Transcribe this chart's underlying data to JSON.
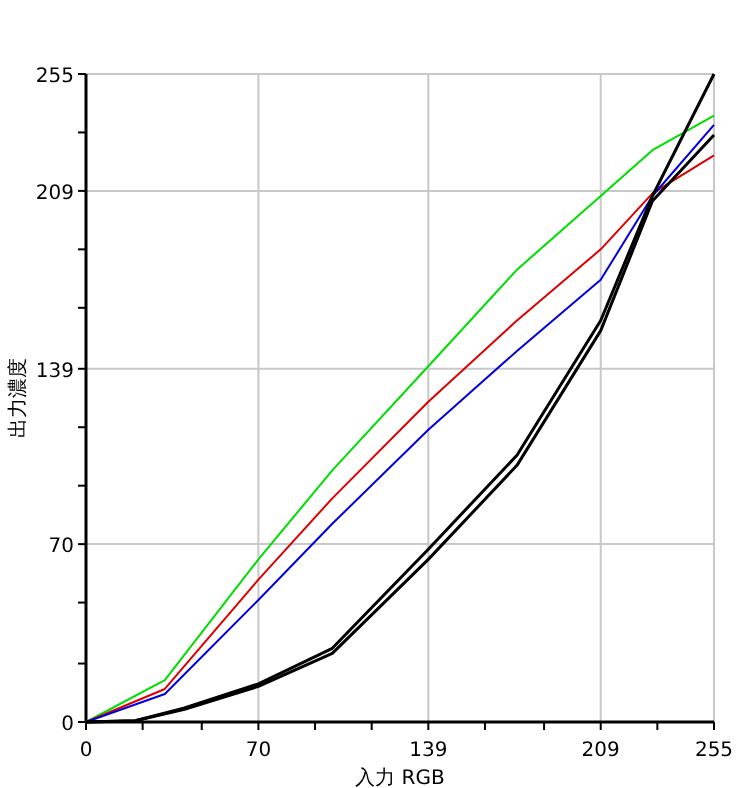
{
  "chart_data": {
    "type": "line",
    "xlabel": "入力 RGB",
    "ylabel": "出力濃度",
    "xlim": [
      0,
      255
    ],
    "ylim": [
      0,
      255
    ],
    "xticks": [
      0,
      {
        "value": 23,
        "label": null
      },
      {
        "value": 47,
        "label": null
      },
      70,
      {
        "value": 93,
        "label": null
      },
      {
        "value": 116,
        "label": null
      },
      139,
      {
        "value": 162,
        "label": null
      },
      {
        "value": 186,
        "label": null
      },
      209,
      {
        "value": 232,
        "label": null
      },
      255
    ],
    "yticks": [
      0,
      {
        "value": 23,
        "label": null
      },
      {
        "value": 47,
        "label": null
      },
      70,
      {
        "value": 93,
        "label": null
      },
      {
        "value": 116,
        "label": null
      },
      139,
      {
        "value": 163,
        "label": null
      },
      {
        "value": 186,
        "label": null
      },
      209,
      {
        "value": 232,
        "label": null
      },
      255
    ],
    "grid": true,
    "line_style": "solid",
    "series": [
      {
        "color": "#00dd00",
        "x": [
          0,
          32,
          70,
          100,
          139,
          175,
          209,
          230,
          255
        ],
        "values": [
          0,
          16.5,
          64,
          99,
          140,
          178,
          207,
          225,
          238.6
        ]
      },
      {
        "color": "#dd0000",
        "x": [
          0,
          32,
          70,
          100,
          139,
          175,
          209,
          230,
          255
        ],
        "values": [
          0,
          13,
          56,
          88,
          126,
          158,
          186,
          208,
          223
        ]
      },
      {
        "color": "#0000dd",
        "x": [
          0,
          32,
          70,
          100,
          139,
          175,
          209,
          230,
          255
        ],
        "values": [
          0,
          11,
          48,
          78,
          115,
          146,
          174,
          207,
          235
        ]
      },
      {
        "color": "#000000",
        "x": [
          0,
          20,
          40,
          70,
          100,
          139,
          175,
          209,
          230,
          255
        ],
        "values": [
          0,
          0.5,
          5.5,
          15,
          29,
          68,
          105,
          158,
          207,
          255
        ]
      },
      {
        "color": "#000000",
        "x": [
          0,
          20,
          40,
          70,
          100,
          139,
          175,
          209,
          230,
          255
        ],
        "values": [
          0,
          0.5,
          5,
          14,
          27,
          64,
          101,
          154,
          205,
          231
        ]
      }
    ]
  }
}
